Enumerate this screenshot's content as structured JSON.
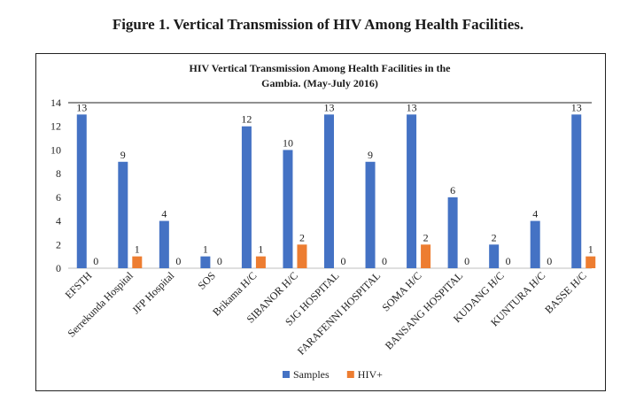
{
  "figure_caption": "Figure 1. Vertical Transmission of HIV Among Health Facilities.",
  "chart_data": {
    "type": "bar",
    "title_lines": [
      "HIV Vertical Transmission Among Health Facilities in the",
      "Gambia. (May-July 2016)"
    ],
    "categories": [
      "EFSTH",
      "Serrekunda Hospital",
      "JFP Hospital",
      "SOS",
      "Brikama H/C",
      "SIBANOR H/C",
      "SJG HOSPITAL",
      "FARAFENNI HOSPITAL",
      "SOMA H/C",
      "BANSANG HOSPITAL",
      "KUDANG H/C",
      "KUNTURA H/C",
      "BASSE H/C"
    ],
    "series": [
      {
        "name": "Samples",
        "color": "#4472C4",
        "values": [
          13,
          9,
          4,
          1,
          12,
          10,
          13,
          9,
          13,
          6,
          2,
          4,
          13
        ]
      },
      {
        "name": "HIV+",
        "color": "#ED7D31",
        "values": [
          0,
          1,
          0,
          0,
          1,
          2,
          0,
          0,
          2,
          0,
          0,
          0,
          1
        ]
      }
    ],
    "yticks": [
      "0",
      "2",
      "4",
      "6",
      "8",
      "10",
      "12",
      "14"
    ],
    "ylim": [
      0,
      14
    ],
    "grid": false,
    "legend_position": "bottom"
  }
}
